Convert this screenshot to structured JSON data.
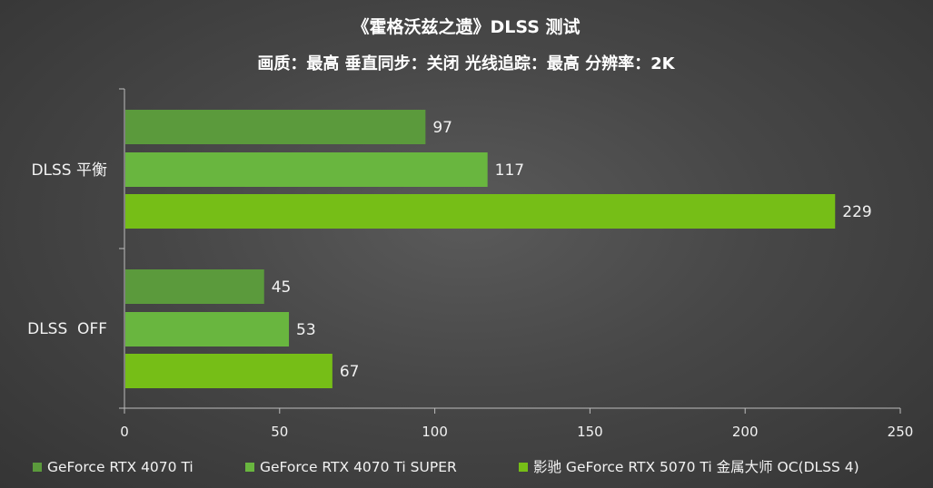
{
  "chart_data": {
    "type": "bar",
    "orientation": "horizontal",
    "title": "《霍格沃兹之遗》DLSS 测试",
    "subtitle": "画质：最高 垂直同步：关闭 光线追踪：最高 分辨率：2K",
    "categories": [
      "DLSS 平衡",
      "DLSS  OFF"
    ],
    "series": [
      {
        "name": "GeForce RTX 4070 Ti",
        "color": "#5b9a3c",
        "values": [
          97,
          45
        ]
      },
      {
        "name": "GeForce RTX 4070 Ti SUPER",
        "color": "#69b63f",
        "values": [
          117,
          53
        ]
      },
      {
        "name": "影驰 GeForce RTX 5070 Ti 金属大师 OC(DLSS 4)",
        "color": "#76be17",
        "values": [
          229,
          67
        ]
      }
    ],
    "xlim": [
      0,
      250
    ],
    "xticks": [
      0,
      50,
      100,
      150,
      200,
      250
    ],
    "grid": false,
    "legend_position": "bottom"
  }
}
